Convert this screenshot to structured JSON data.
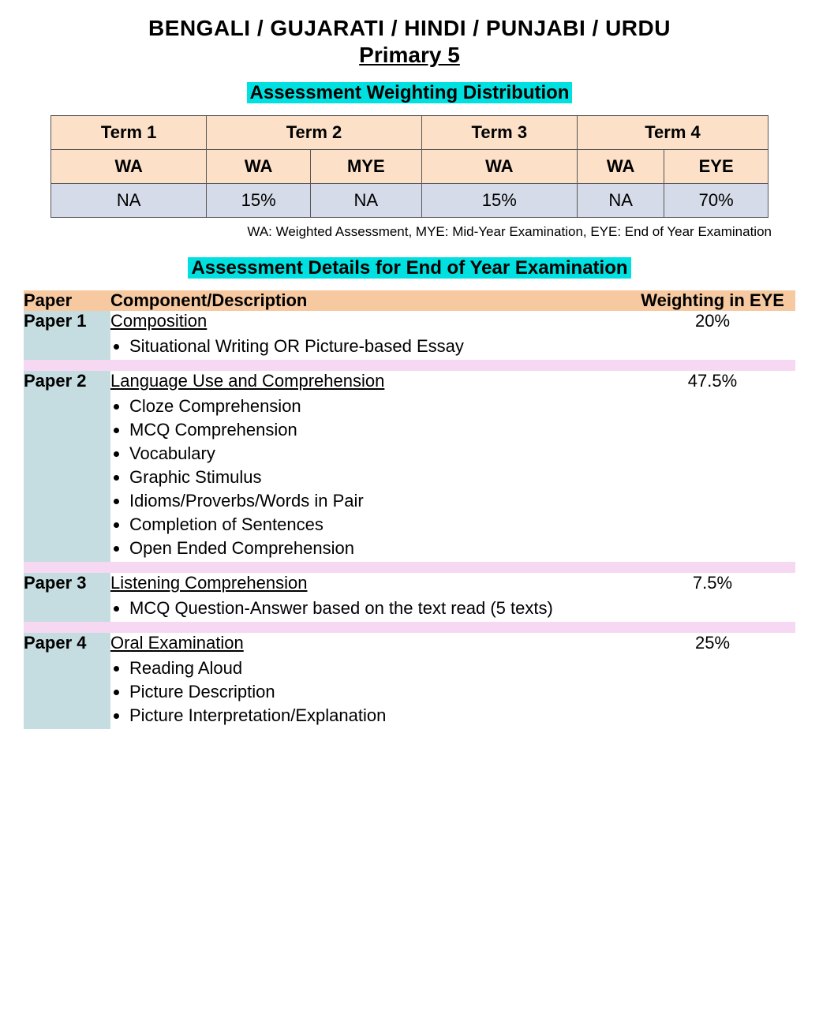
{
  "title_line1": "BENGALI / GUJARATI / HINDI / PUNJABI / URDU",
  "title_line2": "Primary 5",
  "section1_heading": "Assessment Weighting Distribution",
  "colors": {
    "highlight": "#00e0e0",
    "peach": "#fce0c8",
    "lightblue_row": "#d5dbe8",
    "paper_bg": "#c5dde0",
    "header_peach": "#f6c9a0",
    "separator": "#f7d8f2"
  },
  "weighting_table": {
    "terms": [
      "Term 1",
      "Term 2",
      "Term 3",
      "Term 4"
    ],
    "term_colspans": [
      1,
      2,
      1,
      2
    ],
    "subheaders": [
      "WA",
      "WA",
      "MYE",
      "WA",
      "WA",
      "EYE"
    ],
    "values": [
      "NA",
      "15%",
      "NA",
      "15%",
      "NA",
      "70%"
    ]
  },
  "legend": "WA: Weighted Assessment, MYE: Mid-Year Examination, EYE: End of Year Examination",
  "section2_heading": "Assessment Details for End of Year Examination",
  "details_headers": {
    "paper": "Paper",
    "component": "Component/Description",
    "weight": "Weighting in EYE"
  },
  "papers": [
    {
      "name": "Paper 1",
      "title": "Composition",
      "items": [
        "Situational Writing OR Picture-based Essay"
      ],
      "weight": "20%"
    },
    {
      "name": "Paper 2",
      "title": "Language Use and Comprehension",
      "items": [
        "Cloze Comprehension",
        "MCQ Comprehension",
        "Vocabulary",
        "Graphic Stimulus",
        "Idioms/Proverbs/Words in Pair",
        "Completion of Sentences",
        "Open Ended Comprehension"
      ],
      "weight": "47.5%"
    },
    {
      "name": "Paper 3",
      "title": "Listening Comprehension",
      "items": [
        "MCQ Question-Answer based on the text read (5 texts)"
      ],
      "weight": "7.5%"
    },
    {
      "name": "Paper 4",
      "title": "Oral Examination",
      "items": [
        "Reading Aloud",
        "Picture Description",
        "Picture Interpretation/Explanation"
      ],
      "weight": "25%"
    }
  ]
}
